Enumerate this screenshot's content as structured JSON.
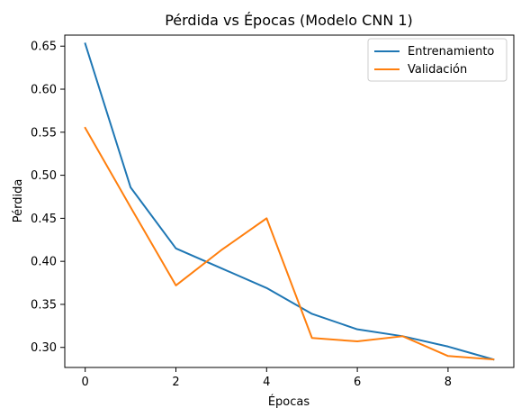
{
  "chart_data": {
    "type": "line",
    "title": "Pérdida vs Épocas (Modelo CNN 1)",
    "xlabel": "Épocas",
    "ylabel": "Pérdida",
    "x": [
      0,
      1,
      2,
      3,
      4,
      5,
      6,
      7,
      8,
      9
    ],
    "xlim": [
      -0.45,
      9.45
    ],
    "ylim": [
      0.2767,
      0.6628
    ],
    "xticks": [
      0,
      2,
      4,
      6,
      8
    ],
    "yticks": [
      0.3,
      0.35,
      0.4,
      0.45,
      0.5,
      0.55,
      0.6,
      0.65
    ],
    "ytick_labels": [
      "0.30",
      "0.35",
      "0.40",
      "0.45",
      "0.50",
      "0.55",
      "0.60",
      "0.65"
    ],
    "grid": false,
    "legend_position": "top-right",
    "series": [
      {
        "name": "Entrenamiento",
        "color": "#1f77b4",
        "values": [
          0.653,
          0.486,
          0.415,
          0.392,
          0.369,
          0.339,
          0.321,
          0.313,
          0.301,
          0.286
        ]
      },
      {
        "name": "Validación",
        "color": "#ff7f0e",
        "values": [
          0.555,
          0.463,
          0.372,
          0.413,
          0.45,
          0.311,
          0.307,
          0.313,
          0.29,
          0.286
        ]
      }
    ]
  }
}
